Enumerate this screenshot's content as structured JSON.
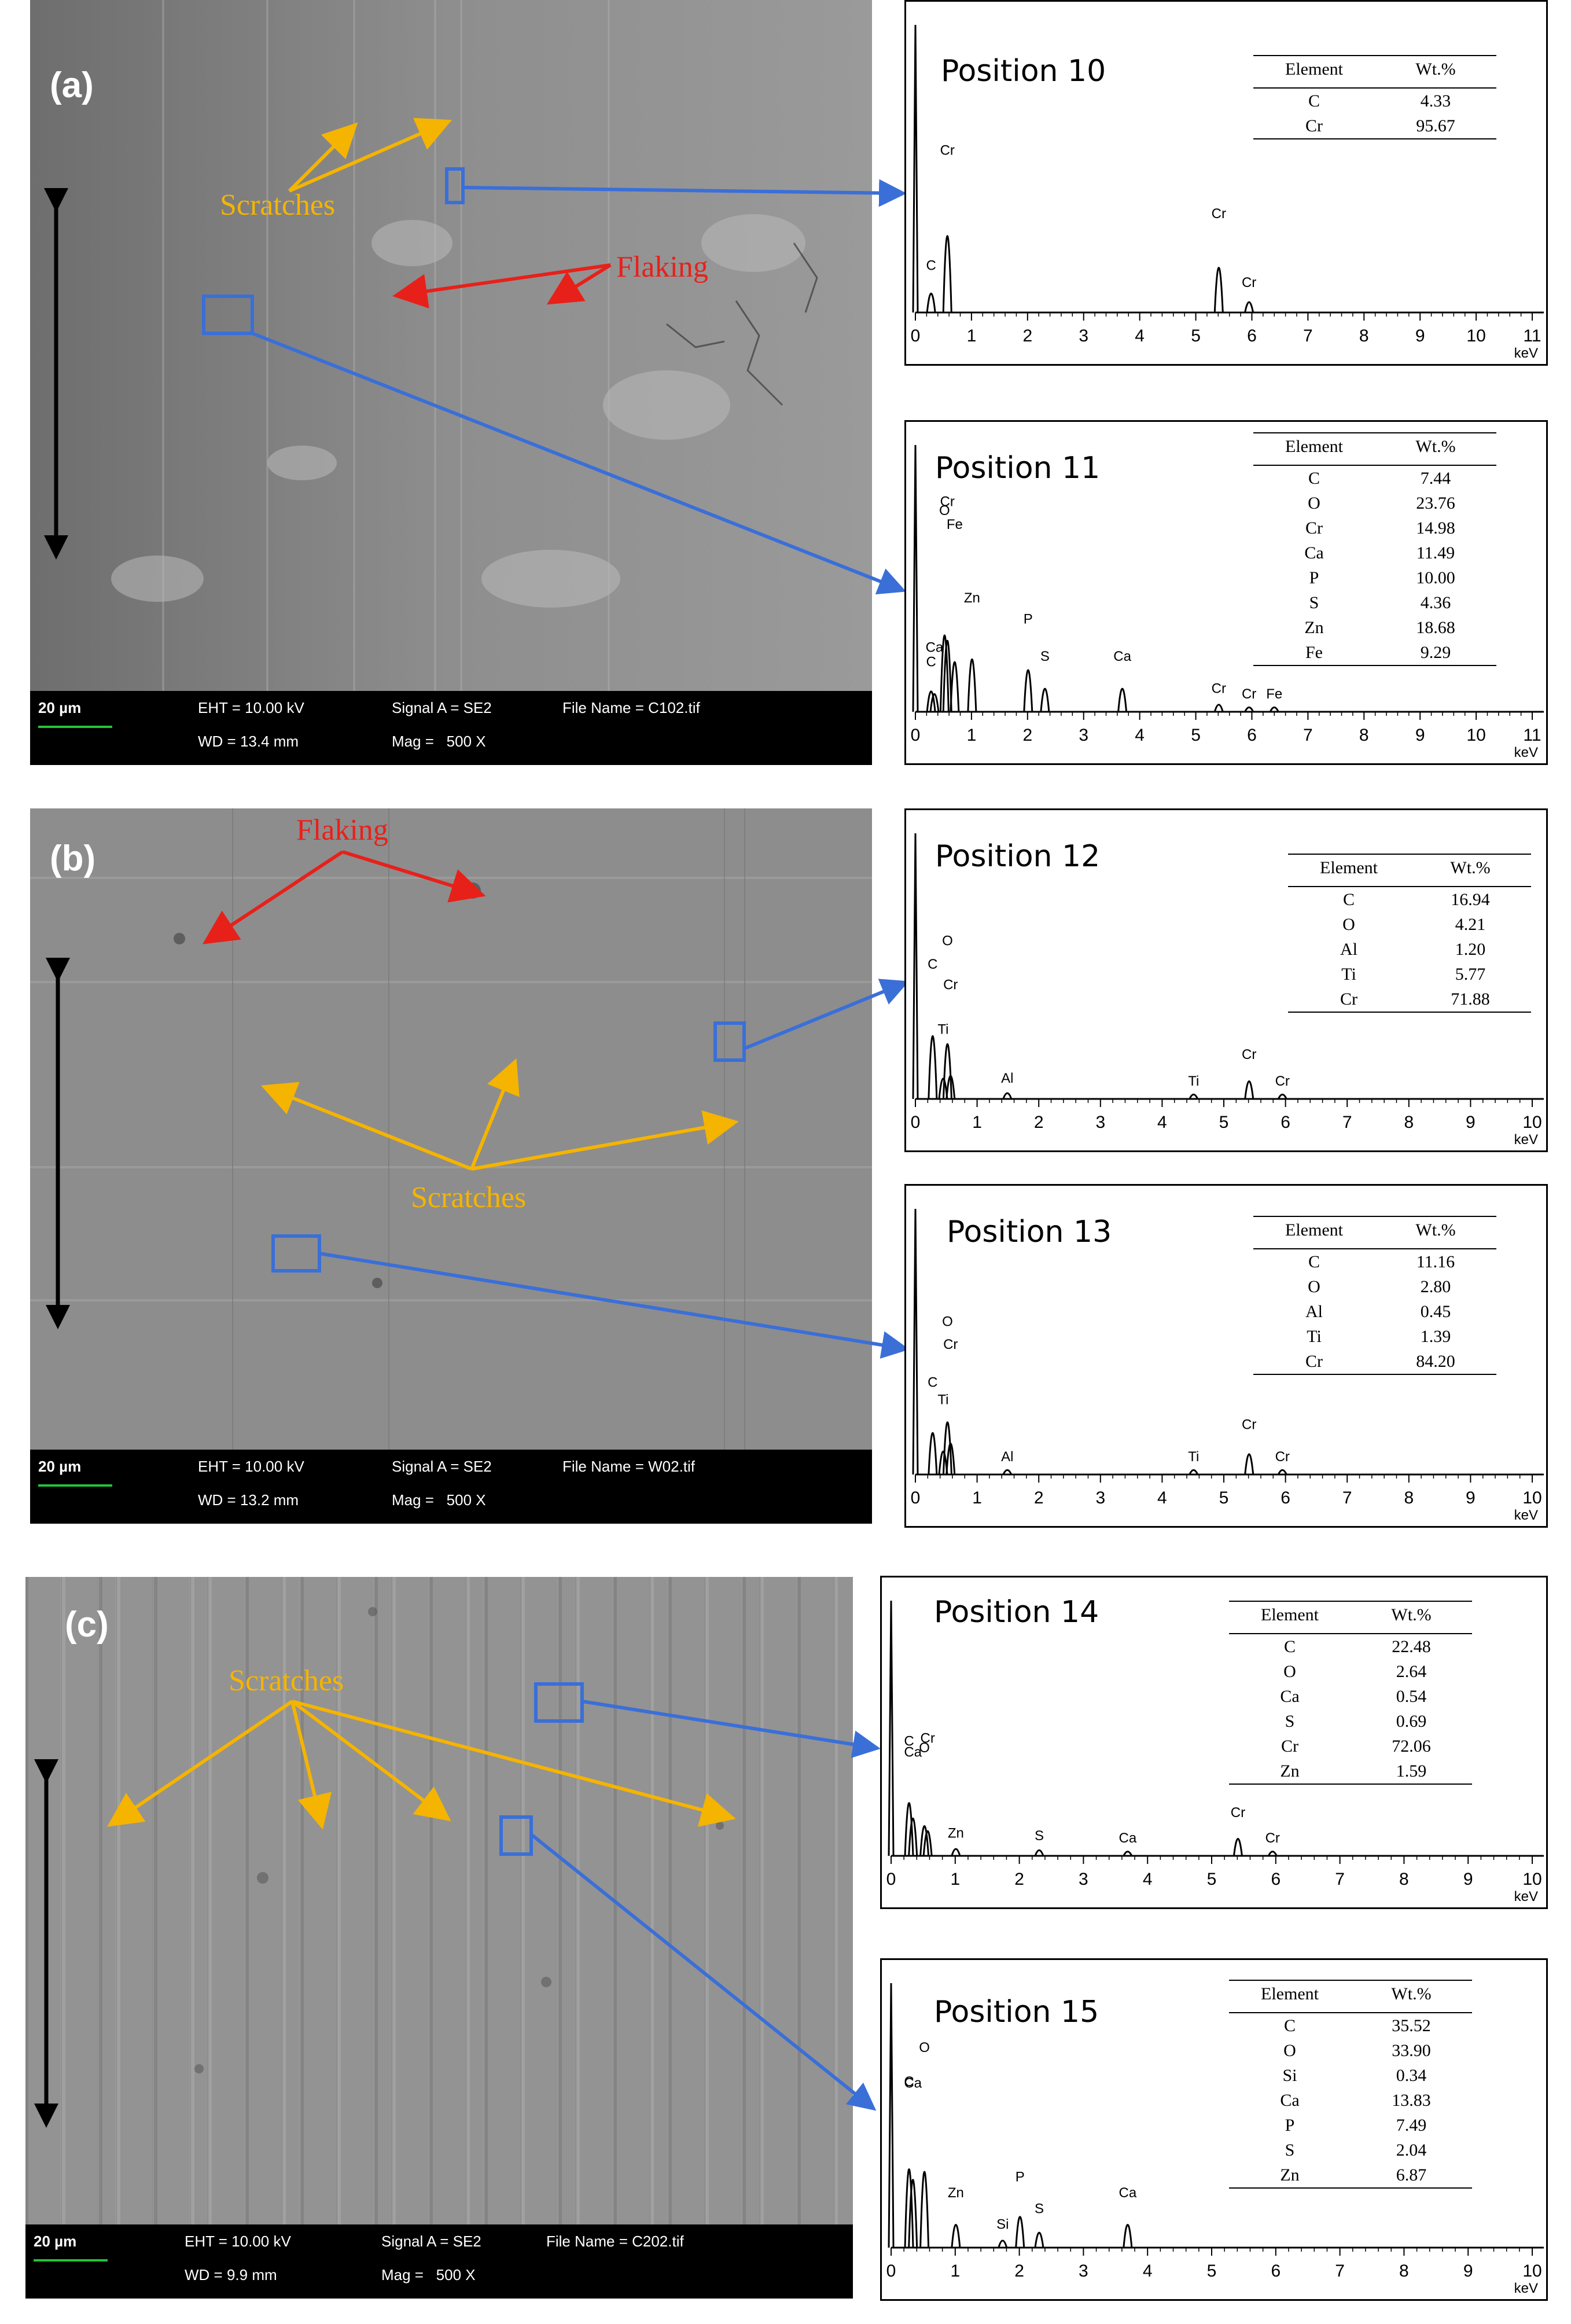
{
  "panels": [
    {
      "label": "(a)",
      "sem": {
        "scale_label": "20 µm",
        "eht": "EHT = 10.00 kV",
        "wd": "WD = 13.4 mm",
        "signal": "Signal A = SE2",
        "mag": "Mag =   500 X",
        "file": "File Name = C102.tif"
      },
      "annotations": [
        {
          "text": "Scratches",
          "color": "#f5b400"
        },
        {
          "text": "Flaking",
          "color": "#e8201a"
        }
      ]
    },
    {
      "label": "(b)",
      "sem": {
        "scale_label": "20 µm",
        "eht": "EHT = 10.00 kV",
        "wd": "WD = 13.2 mm",
        "signal": "Signal A = SE2",
        "mag": "Mag =   500 X",
        "file": "File Name = W02.tif"
      },
      "annotations": [
        {
          "text": "Flaking",
          "color": "#e8201a"
        },
        {
          "text": "Scratches",
          "color": "#f5b400"
        }
      ]
    },
    {
      "label": "(c)",
      "sem": {
        "scale_label": "20 µm",
        "eht": "EHT = 10.00 kV",
        "wd": "WD = 9.9 mm",
        "signal": "Signal A = SE2",
        "mag": "Mag =   500 X",
        "file": "File Name = C202.tif"
      },
      "annotations": [
        {
          "text": "Scratches",
          "color": "#f5b400"
        }
      ]
    }
  ],
  "eds_table_headers": {
    "element": "Element",
    "wt": "Wt.%"
  },
  "eds_axis_unit": "keV",
  "chart_data": [
    {
      "type": "line",
      "title": "Position 10",
      "xlabel": "keV",
      "x_ticks": [
        "0",
        "1",
        "2",
        "3",
        "4",
        "5",
        "6",
        "7",
        "8",
        "9",
        "10",
        "11"
      ],
      "peaks": [
        {
          "label": "C",
          "x": 0.28,
          "h": 0.12
        },
        {
          "label": "Cr",
          "x": 0.57,
          "h": 0.52
        },
        {
          "label": "Cr",
          "x": 5.41,
          "h": 0.3
        },
        {
          "label": "Cr",
          "x": 5.95,
          "h": 0.06
        }
      ],
      "composition": [
        {
          "element": "C",
          "wt": "4.33"
        },
        {
          "element": "Cr",
          "wt": "95.67"
        }
      ]
    },
    {
      "type": "line",
      "title": "Position 11",
      "xlabel": "keV",
      "x_ticks": [
        "0",
        "1",
        "2",
        "3",
        "4",
        "5",
        "6",
        "7",
        "8",
        "9",
        "10",
        "11"
      ],
      "peaks": [
        {
          "label": "C",
          "x": 0.28,
          "h": 0.14
        },
        {
          "label": "Ca",
          "x": 0.34,
          "h": 0.12
        },
        {
          "label": "O",
          "x": 0.52,
          "h": 0.56
        },
        {
          "label": "Cr",
          "x": 0.57,
          "h": 0.52
        },
        {
          "label": "Fe",
          "x": 0.7,
          "h": 0.36
        },
        {
          "label": "Zn",
          "x": 1.01,
          "h": 0.38
        },
        {
          "label": "P",
          "x": 2.01,
          "h": 0.3
        },
        {
          "label": "S",
          "x": 2.31,
          "h": 0.16
        },
        {
          "label": "Ca",
          "x": 3.69,
          "h": 0.16
        },
        {
          "label": "Cr",
          "x": 5.41,
          "h": 0.04
        },
        {
          "label": "Cr",
          "x": 5.95,
          "h": 0.02
        },
        {
          "label": "Fe",
          "x": 6.4,
          "h": 0.02
        }
      ],
      "composition": [
        {
          "element": "C",
          "wt": "7.44"
        },
        {
          "element": "O",
          "wt": "23.76"
        },
        {
          "element": "Cr",
          "wt": "14.98"
        },
        {
          "element": "Ca",
          "wt": "11.49"
        },
        {
          "element": "P",
          "wt": "10.00"
        },
        {
          "element": "S",
          "wt": "4.36"
        },
        {
          "element": "Zn",
          "wt": "18.68"
        },
        {
          "element": "Fe",
          "wt": "9.29"
        }
      ]
    },
    {
      "type": "line",
      "title": "Position 12",
      "xlabel": "keV",
      "x_ticks": [
        "0",
        "1",
        "2",
        "3",
        "4",
        "5",
        "6",
        "7",
        "8",
        "9",
        "10"
      ],
      "peaks": [
        {
          "label": "C",
          "x": 0.28,
          "h": 0.46
        },
        {
          "label": "Ti",
          "x": 0.45,
          "h": 0.14
        },
        {
          "label": "O",
          "x": 0.52,
          "h": 0.4
        },
        {
          "label": "Cr",
          "x": 0.57,
          "h": 0.16
        },
        {
          "label": "Al",
          "x": 1.49,
          "h": 0.03
        },
        {
          "label": "Ti",
          "x": 4.51,
          "h": 0.02
        },
        {
          "label": "Cr",
          "x": 5.41,
          "h": 0.12
        },
        {
          "label": "Cr",
          "x": 5.95,
          "h": 0.02
        }
      ],
      "composition": [
        {
          "element": "C",
          "wt": "16.94"
        },
        {
          "element": "O",
          "wt": "4.21"
        },
        {
          "element": "Al",
          "wt": "1.20"
        },
        {
          "element": "Ti",
          "wt": "5.77"
        },
        {
          "element": "Cr",
          "wt": "71.88"
        }
      ]
    },
    {
      "type": "line",
      "title": "Position 13",
      "xlabel": "keV",
      "x_ticks": [
        "0",
        "1",
        "2",
        "3",
        "4",
        "5",
        "6",
        "7",
        "8",
        "9",
        "10"
      ],
      "peaks": [
        {
          "label": "C",
          "x": 0.28,
          "h": 0.3
        },
        {
          "label": "Ti",
          "x": 0.45,
          "h": 0.16
        },
        {
          "label": "O",
          "x": 0.52,
          "h": 0.38
        },
        {
          "label": "Cr",
          "x": 0.57,
          "h": 0.22
        },
        {
          "label": "Al",
          "x": 1.49,
          "h": 0.02
        },
        {
          "label": "Ti",
          "x": 4.51,
          "h": 0.02
        },
        {
          "label": "Cr",
          "x": 5.41,
          "h": 0.14
        },
        {
          "label": "Cr",
          "x": 5.95,
          "h": 0.02
        }
      ],
      "composition": [
        {
          "element": "C",
          "wt": "11.16"
        },
        {
          "element": "O",
          "wt": "2.80"
        },
        {
          "element": "Al",
          "wt": "0.45"
        },
        {
          "element": "Ti",
          "wt": "1.39"
        },
        {
          "element": "Cr",
          "wt": "84.20"
        }
      ]
    },
    {
      "type": "line",
      "title": "Position 14",
      "xlabel": "keV",
      "x_ticks": [
        "0",
        "1",
        "2",
        "3",
        "4",
        "5",
        "6",
        "7",
        "8",
        "9",
        "10"
      ],
      "peaks": [
        {
          "label": "C",
          "x": 0.28,
          "h": 0.4
        },
        {
          "label": "Ca",
          "x": 0.34,
          "h": 0.28
        },
        {
          "label": "O",
          "x": 0.52,
          "h": 0.22
        },
        {
          "label": "Cr",
          "x": 0.57,
          "h": 0.18
        },
        {
          "label": "Zn",
          "x": 1.01,
          "h": 0.04
        },
        {
          "label": "S",
          "x": 2.31,
          "h": 0.03
        },
        {
          "label": "Ca",
          "x": 3.69,
          "h": 0.02
        },
        {
          "label": "Cr",
          "x": 5.41,
          "h": 0.12
        },
        {
          "label": "Cr",
          "x": 5.95,
          "h": 0.02
        }
      ],
      "composition": [
        {
          "element": "C",
          "wt": "22.48"
        },
        {
          "element": "O",
          "wt": "2.64"
        },
        {
          "element": "Ca",
          "wt": "0.54"
        },
        {
          "element": "S",
          "wt": "0.69"
        },
        {
          "element": "Cr",
          "wt": "72.06"
        },
        {
          "element": "Zn",
          "wt": "1.59"
        }
      ]
    },
    {
      "type": "line",
      "title": "Position 15",
      "xlabel": "keV",
      "x_ticks": [
        "0",
        "1",
        "2",
        "3",
        "4",
        "5",
        "6",
        "7",
        "8",
        "9",
        "10"
      ],
      "peaks": [
        {
          "label": "C",
          "x": 0.28,
          "h": 0.58
        },
        {
          "label": "Ca",
          "x": 0.34,
          "h": 0.5
        },
        {
          "label": "O",
          "x": 0.52,
          "h": 0.56
        },
        {
          "label": "Zn",
          "x": 1.01,
          "h": 0.16
        },
        {
          "label": "Si",
          "x": 1.74,
          "h": 0.04
        },
        {
          "label": "P",
          "x": 2.01,
          "h": 0.22
        },
        {
          "label": "S",
          "x": 2.31,
          "h": 0.1
        },
        {
          "label": "Ca",
          "x": 3.69,
          "h": 0.16
        }
      ],
      "composition": [
        {
          "element": "C",
          "wt": "35.52"
        },
        {
          "element": "O",
          "wt": "33.90"
        },
        {
          "element": "Si",
          "wt": "0.34"
        },
        {
          "element": "Ca",
          "wt": "13.83"
        },
        {
          "element": "P",
          "wt": "7.49"
        },
        {
          "element": "S",
          "wt": "2.04"
        },
        {
          "element": "Zn",
          "wt": "6.87"
        }
      ]
    }
  ]
}
